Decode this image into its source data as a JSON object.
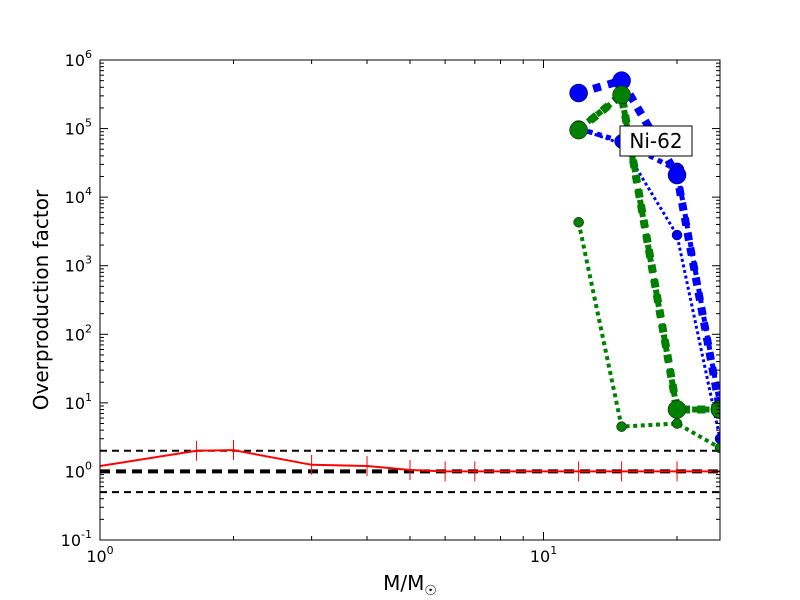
{
  "chart_data": {
    "type": "line",
    "title": "",
    "xlabel": "M/M",
    "xlabel_sub": "☉",
    "ylabel": "Overproduction factor",
    "xscale": "log",
    "yscale": "log",
    "xlim": [
      1,
      25
    ],
    "ylim": [
      0.1,
      1000000
    ],
    "x_ticks": [
      {
        "base": "10",
        "exp": "0",
        "value": 1
      },
      {
        "base": "10",
        "exp": "1",
        "value": 10
      }
    ],
    "y_ticks": [
      {
        "base": "10",
        "exp": "-1",
        "value": 0.1
      },
      {
        "base": "10",
        "exp": "0",
        "value": 1
      },
      {
        "base": "10",
        "exp": "1",
        "value": 10
      },
      {
        "base": "10",
        "exp": "2",
        "value": 100
      },
      {
        "base": "10",
        "exp": "3",
        "value": 1000
      },
      {
        "base": "10",
        "exp": "4",
        "value": 10000
      },
      {
        "base": "10",
        "exp": "5",
        "value": 100000
      },
      {
        "base": "10",
        "exp": "6",
        "value": 1000000
      }
    ],
    "annotation": "Ni-62",
    "reference_lines": [
      {
        "y": 2.0,
        "style": "dashed",
        "width": "thin"
      },
      {
        "y": 1.0,
        "style": "dashed",
        "width": "thick"
      },
      {
        "y": 0.5,
        "style": "dashed",
        "width": "thin"
      }
    ],
    "series": [
      {
        "color": "#ff0000",
        "style": "solid",
        "marker": "tick",
        "points": [
          [
            1,
            1.2
          ],
          [
            1.65,
            2.0
          ],
          [
            2,
            2.05
          ],
          [
            3,
            1.25
          ],
          [
            4,
            1.2
          ],
          [
            5,
            1.05
          ],
          [
            6,
            1.0
          ],
          [
            7,
            1.0
          ],
          [
            12,
            1.0
          ],
          [
            15,
            1.0
          ],
          [
            20,
            1.0
          ],
          [
            25,
            1.0
          ]
        ]
      },
      {
        "color": "#0000ff",
        "style": "dotted",
        "width": 3,
        "marker_size": 5,
        "points": [
          [
            12,
            100000
          ],
          [
            15,
            60000
          ],
          [
            20,
            2800
          ],
          [
            25,
            3
          ]
        ]
      },
      {
        "color": "#0000ff",
        "style": "dotted",
        "width": 5,
        "marker_size": 7,
        "points": [
          [
            12,
            100000
          ],
          [
            15,
            65000
          ],
          [
            20,
            25000
          ],
          [
            25,
            9
          ]
        ]
      },
      {
        "color": "#0000ff",
        "style": "dotted",
        "width": 8,
        "marker_size": 9,
        "points": [
          [
            12,
            330000
          ],
          [
            15,
            500000
          ],
          [
            20,
            21000
          ],
          [
            25,
            8
          ]
        ]
      },
      {
        "color": "#008000",
        "style": "dotted",
        "width": 4,
        "marker_size": 5,
        "points": [
          [
            12,
            4300
          ],
          [
            15,
            4.5
          ],
          [
            20,
            5
          ],
          [
            25,
            2.2
          ]
        ]
      },
      {
        "color": "#008000",
        "style": "dotted",
        "width": 6,
        "marker_size": 8,
        "points": [
          [
            12,
            100000
          ],
          [
            15,
            300000
          ],
          [
            20,
            8
          ],
          [
            25,
            8
          ]
        ]
      },
      {
        "color": "#008000",
        "style": "dotted",
        "width": 8,
        "marker_size": 9,
        "points": [
          [
            12,
            95000
          ],
          [
            15,
            310000
          ],
          [
            20,
            8
          ],
          [
            25,
            8
          ]
        ]
      }
    ]
  }
}
